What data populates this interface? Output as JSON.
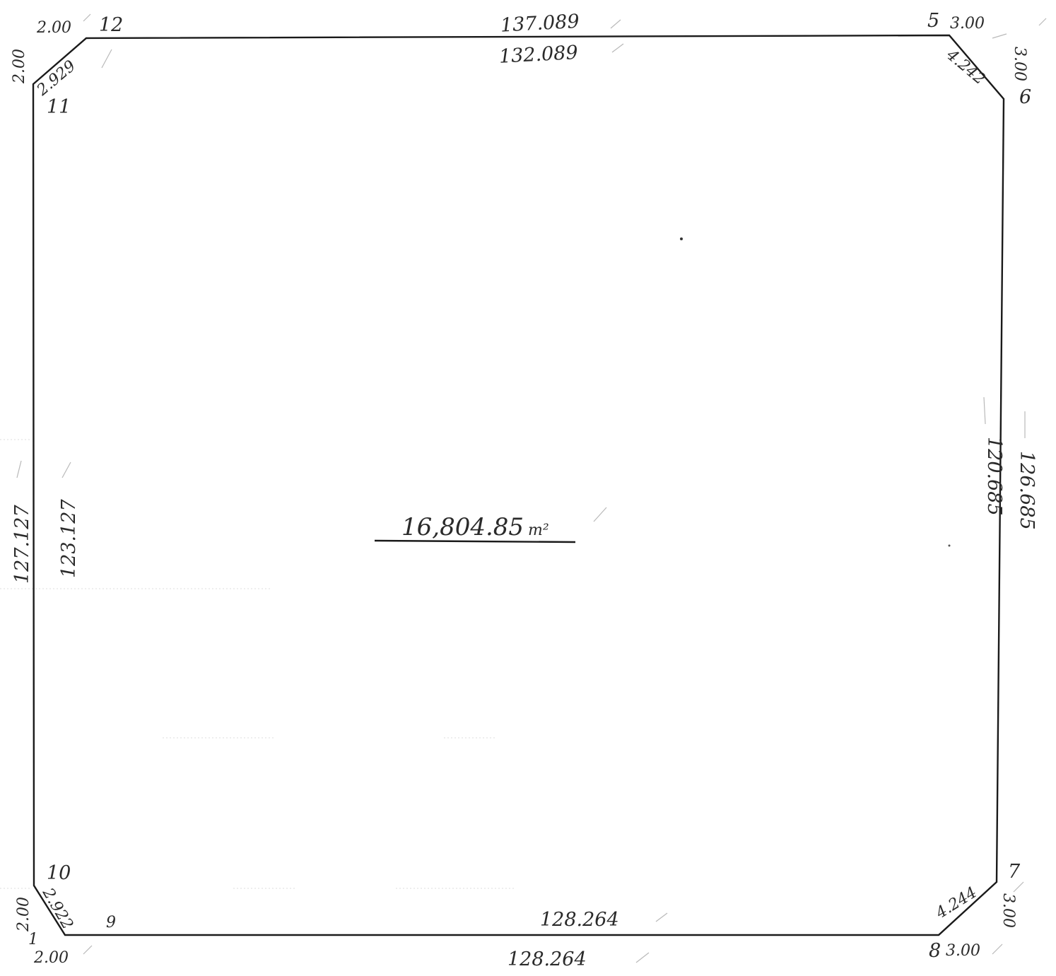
{
  "area": {
    "value": "16,804.85",
    "unit": "m²"
  },
  "vertices": {
    "v5": "5",
    "v6": "6",
    "v7": "7",
    "v8": "8",
    "v9": "9",
    "v10": "10",
    "v11": "11",
    "v12": "12",
    "v1": "1"
  },
  "edges": {
    "top_a": "137.089",
    "top_b": "132.089",
    "bottom_a": "128.264",
    "bottom_b": "128.264",
    "left_a": "127.127",
    "left_b": "123.127",
    "right_a": "120.685",
    "right_b": "126.685"
  },
  "corners": {
    "top_left_top": "2.00",
    "top_left_side": "2.00",
    "top_left_diag": "2.929",
    "top_right_top": "3.00",
    "top_right_side": "3.00",
    "top_right_diag": "4.242",
    "bottom_left_side": "2.00",
    "bottom_left_bottom": "2.00",
    "bottom_left_diag": "2.922",
    "bottom_right_side": "3.00",
    "bottom_right_bottom": "3.00",
    "bottom_right_diag": "4.244"
  }
}
